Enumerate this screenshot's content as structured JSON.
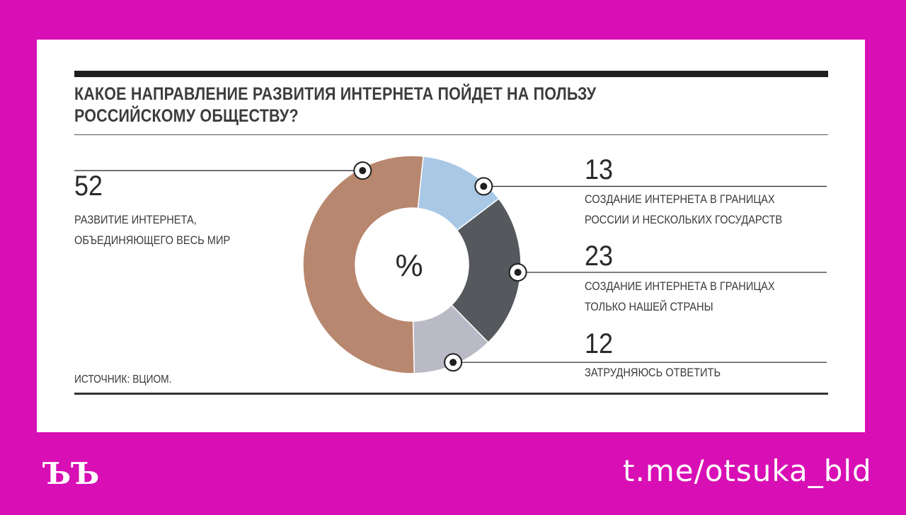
{
  "colors": {
    "background": "#d80fb5",
    "slice_world": "#b8876f",
    "slice_russia_several": "#a8c8e6",
    "slice_country_only": "#55585d",
    "slice_undecided": "#babac6"
  },
  "chart_data": {
    "type": "pie",
    "title": "КАКОЕ НАПРАВЛЕНИЕ РАЗВИТИЯ ИНТЕРНЕТА ПОЙДЕТ НА ПОЛЬЗУ РОССИЙСКОМУ ОБЩЕСТВУ?",
    "title_lines": [
      "КАКОЕ НАПРАВЛЕНИЕ РАЗВИТИЯ ИНТЕРНЕТА ПОЙДЕТ НА ПОЛЬЗУ",
      "РОССИЙСКОМУ ОБЩЕСТВУ?"
    ],
    "center_label": "%",
    "slices": [
      {
        "key": "russia_several",
        "value": 13,
        "label_lines": [
          "СОЗДАНИЕ ИНТЕРНЕТА В ГРАНИЦАХ",
          "РОССИИ И НЕСКОЛЬКИХ ГОСУДАРСТВ"
        ]
      },
      {
        "key": "country_only",
        "value": 23,
        "label_lines": [
          "СОЗДАНИЕ ИНТЕРНЕТА В ГРАНИЦАХ",
          "ТОЛЬКО НАШЕЙ СТРАНЫ"
        ]
      },
      {
        "key": "undecided",
        "value": 12,
        "label_lines": [
          "ЗАТРУДНЯЮСЬ ОТВЕТИТЬ"
        ]
      },
      {
        "key": "world",
        "value": 52,
        "label_lines": [
          "РАЗВИТИЕ ИНТЕРНЕТА,",
          "ОБЪЕДИНЯЮЩЕГО ВЕСЬ МИР"
        ]
      }
    ],
    "source": "ИСТОЧНИК: ВЦИОМ."
  },
  "footer": {
    "brand_mark": "ЪЪ",
    "channel": "t.me/otsuka_bld"
  }
}
